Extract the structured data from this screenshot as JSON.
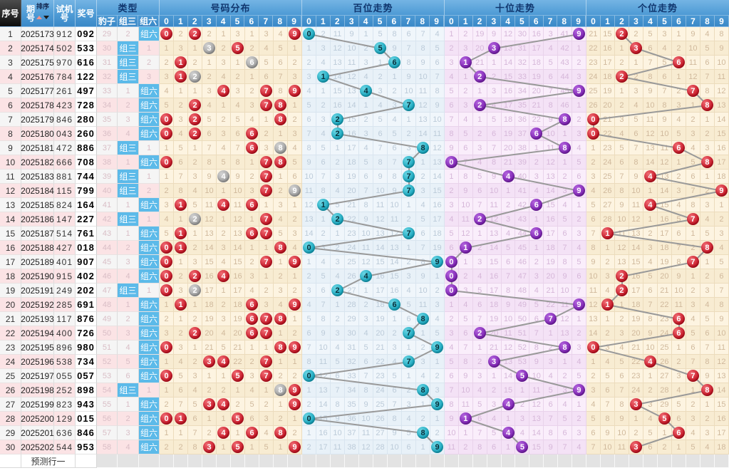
{
  "header": {
    "seq": "序号",
    "issue": "期号",
    "sort": "排序",
    "test": "试机号",
    "prize": "奖号",
    "type": "类型",
    "leopard": "豹子",
    "group3": "组三",
    "group6": "组六",
    "dist": "号码分布",
    "hundreds": "百位走势",
    "tens": "十位走势",
    "units": "个位走势",
    "digits": [
      "0",
      "1",
      "2",
      "3",
      "4",
      "5",
      "6",
      "7",
      "8",
      "9"
    ]
  },
  "footer": {
    "label": "预测行一"
  },
  "rows": [
    {
      "seq": "1",
      "issue": "2025173",
      "test": "912",
      "prize": "092",
      "type": "组六"
    },
    {
      "seq": "2",
      "issue": "2025174",
      "test": "502",
      "prize": "533",
      "type": "组三"
    },
    {
      "seq": "3",
      "issue": "2025175",
      "test": "970",
      "prize": "616",
      "type": "组三"
    },
    {
      "seq": "4",
      "issue": "2025176",
      "test": "784",
      "prize": "122",
      "type": "组三"
    },
    {
      "seq": "5",
      "issue": "2025177",
      "test": "261",
      "prize": "497",
      "type": "组六"
    },
    {
      "seq": "6",
      "issue": "2025178",
      "test": "423",
      "prize": "728",
      "type": "组六"
    },
    {
      "seq": "7",
      "issue": "2025179",
      "test": "846",
      "prize": "280",
      "type": "组六"
    },
    {
      "seq": "8",
      "issue": "2025180",
      "test": "043",
      "prize": "260",
      "type": "组六"
    },
    {
      "seq": "9",
      "issue": "2025181",
      "test": "472",
      "prize": "886",
      "type": "组三"
    },
    {
      "seq": "10",
      "issue": "2025182",
      "test": "666",
      "prize": "708",
      "type": "组六"
    },
    {
      "seq": "11",
      "issue": "2025183",
      "test": "881",
      "prize": "744",
      "type": "组三"
    },
    {
      "seq": "12",
      "issue": "2025184",
      "test": "115",
      "prize": "799",
      "type": "组三"
    },
    {
      "seq": "13",
      "issue": "2025185",
      "test": "824",
      "prize": "164",
      "type": "组六"
    },
    {
      "seq": "14",
      "issue": "2025186",
      "test": "147",
      "prize": "227",
      "type": "组三"
    },
    {
      "seq": "15",
      "issue": "2025187",
      "test": "514",
      "prize": "761",
      "type": "组六"
    },
    {
      "seq": "16",
      "issue": "2025188",
      "test": "427",
      "prize": "018",
      "type": "组六"
    },
    {
      "seq": "17",
      "issue": "2025189",
      "test": "401",
      "prize": "907",
      "type": "组六"
    },
    {
      "seq": "18",
      "issue": "2025190",
      "test": "915",
      "prize": "402",
      "type": "组六"
    },
    {
      "seq": "19",
      "issue": "2025191",
      "test": "249",
      "prize": "202",
      "type": "组三"
    },
    {
      "seq": "20",
      "issue": "2025192",
      "test": "285",
      "prize": "691",
      "type": "组六"
    },
    {
      "seq": "21",
      "issue": "2025193",
      "test": "117",
      "prize": "876",
      "type": "组六"
    },
    {
      "seq": "22",
      "issue": "2025194",
      "test": "400",
      "prize": "726",
      "type": "组六"
    },
    {
      "seq": "23",
      "issue": "2025195",
      "test": "896",
      "prize": "980",
      "type": "组六"
    },
    {
      "seq": "24",
      "issue": "2025196",
      "test": "538",
      "prize": "734",
      "type": "组六"
    },
    {
      "seq": "25",
      "issue": "2025197",
      "test": "055",
      "prize": "057",
      "type": "组六"
    },
    {
      "seq": "26",
      "issue": "2025198",
      "test": "252",
      "prize": "898",
      "type": "组三"
    },
    {
      "seq": "27",
      "issue": "2025199",
      "test": "823",
      "prize": "943",
      "type": "组六"
    },
    {
      "seq": "28",
      "issue": "2025200",
      "test": "129",
      "prize": "015",
      "type": "组六"
    },
    {
      "seq": "29",
      "issue": "2025201",
      "test": "636",
      "prize": "846",
      "type": "组六"
    },
    {
      "seq": "30",
      "issue": "2025202",
      "test": "544",
      "prize": "953",
      "type": "组六"
    }
  ],
  "type_baseline": {
    "leopard_miss_row1": 29,
    "group3_miss_row1": 2
  },
  "miss_baselines_row1": {
    "dist": [
      null,
      2,
      null,
      2,
      1,
      3,
      1,
      3,
      4,
      null
    ],
    "hundreds": [
      null,
      2,
      11,
      9,
      1,
      5,
      8,
      6,
      7,
      4
    ],
    "tens": [
      1,
      2,
      19,
      9,
      12,
      30,
      16,
      3,
      41,
      null
    ],
    "units": [
      21,
      15,
      null,
      2,
      5,
      3,
      1,
      9,
      4,
      8
    ]
  },
  "colors": {
    "header_blue": "#4e9bd5",
    "seq_header_bg": "#1a1a1a",
    "badge_blue": "#5cbae9",
    "row_pink": "#fbe3e5",
    "row_gray": "#f5f5f5",
    "dist_bg": "#fdf4e1",
    "hundreds_bg": "#f0f6fb",
    "tens_bg": "#faeefb",
    "units_bg": "#fdf4e1",
    "ball_red": "#c40f1f",
    "ball_gray": "#a8a8a8",
    "ball_teal": "#14a6bd",
    "ball_purple": "#8327b8",
    "trend_line": "#999999"
  }
}
